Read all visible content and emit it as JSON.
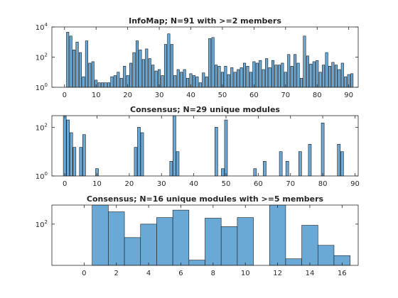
{
  "chart_data": [
    {
      "type": "bar",
      "title": "InfoMap; N=91 with >=2 members",
      "yscale": "log",
      "ylim": [
        1,
        10000
      ],
      "xlim": [
        -4,
        93
      ],
      "xticks": [
        0,
        10,
        20,
        30,
        40,
        50,
        60,
        70,
        80,
        90
      ],
      "yticks": [
        {
          "base": "10",
          "exp": "0",
          "value": 1
        },
        {
          "base": "10",
          "exp": "2",
          "value": 100
        },
        {
          "base": "10",
          "exp": "4",
          "value": 10000
        }
      ],
      "x": [
        1,
        2,
        3,
        4,
        5,
        6,
        7,
        8,
        9,
        10,
        11,
        12,
        13,
        14,
        15,
        16,
        17,
        18,
        19,
        20,
        21,
        22,
        23,
        24,
        25,
        26,
        27,
        28,
        29,
        30,
        31,
        32,
        33,
        34,
        35,
        36,
        37,
        38,
        39,
        40,
        41,
        42,
        43,
        44,
        45,
        46,
        47,
        48,
        49,
        50,
        51,
        52,
        53,
        54,
        55,
        56,
        57,
        58,
        59,
        60,
        61,
        62,
        63,
        64,
        65,
        66,
        67,
        68,
        69,
        70,
        71,
        72,
        73,
        74,
        75,
        76,
        77,
        78,
        79,
        80,
        81,
        82,
        83,
        84,
        85,
        86,
        87,
        88,
        89,
        90,
        91
      ],
      "values": [
        4500,
        2500,
        300,
        1000,
        200,
        5,
        1200,
        40,
        50,
        3,
        2,
        2,
        2,
        2,
        5,
        6,
        10,
        4,
        25,
        6,
        40,
        200,
        1200,
        300,
        70,
        350,
        80,
        30,
        12,
        15,
        6,
        700,
        3500,
        700,
        6,
        15,
        10,
        15,
        4,
        8,
        6,
        5,
        2,
        9,
        5,
        1700,
        2000,
        30,
        25,
        10,
        25,
        7,
        20,
        10,
        15,
        20,
        40,
        25,
        10,
        50,
        40,
        60,
        15,
        80,
        20,
        60,
        30,
        30,
        40,
        10,
        150,
        25,
        150,
        40,
        4,
        2500,
        120,
        35,
        50,
        60,
        10,
        30,
        200,
        25,
        45,
        30,
        15,
        40,
        5,
        7,
        8
      ]
    },
    {
      "type": "bar",
      "title": "Consensus; N=29 unique modules",
      "yscale": "log",
      "ylim": [
        1,
        300
      ],
      "xlim": [
        -4,
        91
      ],
      "xticks": [
        0,
        10,
        20,
        30,
        40,
        50,
        60,
        70,
        80,
        90
      ],
      "yticks": [
        {
          "base": "10",
          "exp": "0",
          "value": 1
        },
        {
          "base": "10",
          "exp": "2",
          "value": 100
        }
      ],
      "x": [
        0,
        1,
        2,
        3,
        5,
        6,
        10,
        22,
        23,
        24,
        33,
        34,
        35,
        47,
        49,
        50,
        59,
        62,
        67,
        69,
        73,
        76,
        80,
        85,
        86
      ],
      "values": [
        300,
        200,
        60,
        15,
        15,
        50,
        2,
        15,
        100,
        60,
        4,
        300,
        10,
        100,
        2,
        200,
        2,
        4,
        10,
        4,
        10,
        20,
        150,
        20,
        10
      ]
    },
    {
      "type": "bar",
      "title": "Consensus; N=16 unique modules with >=5 members",
      "yscale": "log",
      "ylim": [
        2.5,
        550
      ],
      "xlim": [
        -2,
        17
      ],
      "xticks": [
        0,
        2,
        4,
        6,
        8,
        10,
        12,
        14,
        16
      ],
      "yticks": [
        {
          "base": "10",
          "exp": "2",
          "value": 100
        }
      ],
      "x": [
        1,
        2,
        3,
        4,
        5,
        6,
        7,
        8,
        9,
        10,
        11,
        12,
        13,
        14,
        15,
        16
      ],
      "values": [
        550,
        300,
        30,
        100,
        180,
        350,
        4,
        170,
        80,
        180,
        2.5,
        550,
        4.5,
        90,
        15,
        6
      ]
    }
  ]
}
